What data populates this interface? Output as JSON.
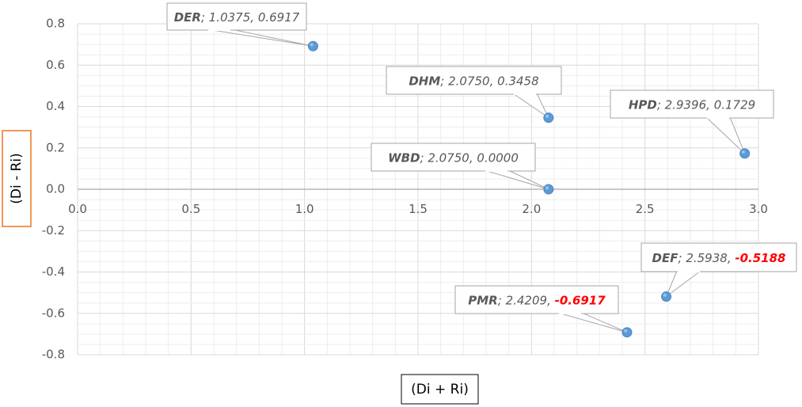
{
  "chart_data": {
    "type": "scatter",
    "title": "",
    "xlabel": "(Di + Ri)",
    "ylabel": "(Di - Ri)",
    "xlim": [
      0,
      3
    ],
    "ylim": [
      -0.8,
      0.8
    ],
    "x_ticks": [
      "0.0",
      "0.5",
      "1.0",
      "1.5",
      "2.0",
      "2.5",
      "3.0"
    ],
    "y_ticks": [
      "0.8",
      "0.6",
      "0.4",
      "0.2",
      "0.0",
      "-0.2",
      "-0.4",
      "-0.6",
      "-0.8"
    ],
    "grid": true,
    "colors": {
      "marker": "#5b9bd5",
      "negative_value": "#ff0000",
      "ylabel_border": "#ed7d31",
      "callout_border": "#a6a6a6"
    },
    "points": [
      {
        "name": "DER",
        "x": 1.0375,
        "y": 0.6917,
        "x_label": "1.0375",
        "y_label": "0.6917",
        "negative": false
      },
      {
        "name": "DHM",
        "x": 2.075,
        "y": 0.3458,
        "x_label": "2.0750",
        "y_label": "0.3458",
        "negative": false
      },
      {
        "name": "HPD",
        "x": 2.9396,
        "y": 0.1729,
        "x_label": "2.9396",
        "y_label": "0.1729",
        "negative": false
      },
      {
        "name": "WBD",
        "x": 2.075,
        "y": 0.0,
        "x_label": "2.0750",
        "y_label": "0.0000",
        "negative": false
      },
      {
        "name": "DEF",
        "x": 2.5938,
        "y": -0.5188,
        "x_label": "2.5938",
        "y_label": "-0.5188",
        "negative": true
      },
      {
        "name": "PMR",
        "x": 2.4209,
        "y": -0.6917,
        "x_label": "2.4209",
        "y_label": "-0.6917",
        "negative": true
      }
    ]
  }
}
